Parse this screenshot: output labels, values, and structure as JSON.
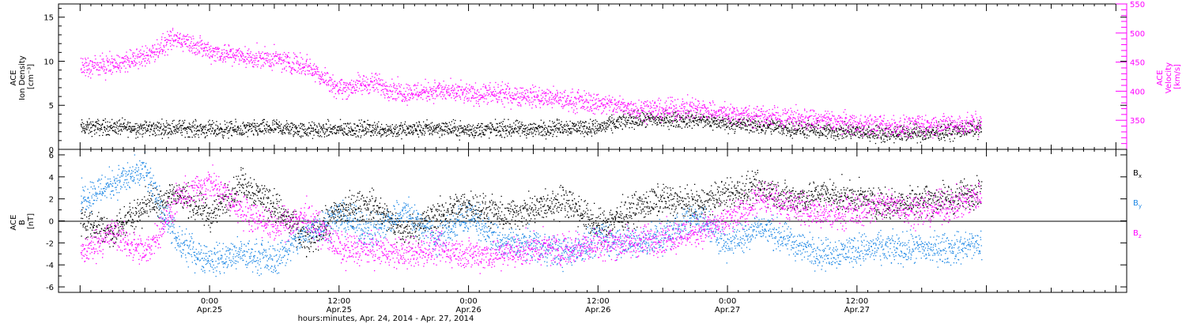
{
  "chart_data": [
    {
      "type": "scatter",
      "panel": "top",
      "ylabel": {
        "lines": [
          "ACE",
          "Ion Density",
          "[cm⁻³]"
        ]
      },
      "ylabel_right": {
        "lines": [
          "ACE",
          "Velocity",
          "[km/s]"
        ]
      },
      "ylim": [
        0,
        16.5
      ],
      "yticks": [
        0,
        5,
        10,
        15
      ],
      "ylim_right": [
        300,
        550
      ],
      "yticks_right": [
        350,
        400,
        450,
        500,
        550
      ],
      "series": [
        {
          "axis": "left",
          "color": "#000000",
          "x": [
            0,
            3,
            6,
            9,
            12,
            15,
            18,
            21,
            24,
            27,
            30,
            33,
            36,
            39,
            42,
            45,
            48,
            51,
            54,
            57,
            60,
            63,
            66,
            69,
            72,
            75,
            78,
            81,
            83.5
          ],
          "values": [
            2.5,
            2.6,
            2.4,
            2.5,
            2.3,
            2.3,
            2.5,
            2.2,
            2.3,
            2.4,
            2.2,
            2.5,
            2.2,
            2.4,
            2.3,
            2.6,
            2.5,
            3.4,
            3.4,
            3.4,
            3.0,
            2.7,
            2.4,
            2.1,
            2.0,
            1.8,
            1.9,
            2.1,
            2.5
          ]
        },
        {
          "axis": "right",
          "color": "#ff00ff",
          "x": [
            0,
            3,
            6,
            9,
            12,
            15,
            18,
            21,
            24,
            27,
            30,
            33,
            36,
            39,
            42,
            45,
            48,
            51,
            54,
            57,
            60,
            63,
            66,
            69,
            72,
            75,
            78,
            81,
            83.5
          ],
          "values": [
            442,
            446,
            460,
            492,
            470,
            460,
            455,
            445,
            405,
            415,
            398,
            402,
            395,
            395,
            392,
            385,
            380,
            372,
            368,
            372,
            362,
            358,
            354,
            350,
            345,
            340,
            342,
            343,
            344
          ]
        }
      ]
    },
    {
      "type": "scatter",
      "panel": "bottom",
      "ylabel": {
        "lines": [
          "ACE",
          "B",
          "[nT]"
        ]
      },
      "ylim": [
        -6.5,
        6.5
      ],
      "yticks": [
        -6,
        -4,
        -2,
        0,
        2,
        4,
        6
      ],
      "series": [
        {
          "name": "Bx",
          "color": "#000000",
          "x": [
            0,
            3,
            6,
            9,
            12,
            15,
            18,
            21,
            24,
            27,
            30,
            33,
            36,
            39,
            42,
            45,
            48,
            51,
            54,
            57,
            60,
            63,
            66,
            69,
            72,
            75,
            78,
            81,
            83.5
          ],
          "values": [
            0,
            -1.0,
            1.5,
            2.5,
            0.5,
            3.5,
            1.5,
            -2.0,
            1.0,
            1.5,
            -1.0,
            0.5,
            1.5,
            0.5,
            1.0,
            2.0,
            -0.5,
            1.0,
            2.0,
            1.5,
            2.5,
            3.0,
            2.0,
            2.5,
            2.0,
            1.5,
            2.0,
            2.0,
            3.0
          ]
        },
        {
          "name": "By",
          "color": "#1e88e5",
          "x": [
            0,
            3,
            6,
            9,
            12,
            15,
            18,
            21,
            24,
            27,
            30,
            33,
            36,
            39,
            42,
            45,
            48,
            51,
            54,
            57,
            60,
            63,
            66,
            69,
            72,
            75,
            78,
            81,
            83.5
          ],
          "values": [
            2.0,
            3.5,
            4.5,
            -2.0,
            -3.5,
            -3.0,
            -3.5,
            -1.0,
            0.5,
            -1.0,
            1.0,
            -1.5,
            0.5,
            -2.0,
            -2.0,
            -3.0,
            -1.5,
            -2.0,
            -1.5,
            0.5,
            -2.0,
            -0.5,
            -2.0,
            -3.0,
            -2.5,
            -2.5,
            -2.5,
            -2.5,
            -2.0
          ]
        },
        {
          "name": "Bz",
          "color": "#ff00ff",
          "x": [
            0,
            3,
            6,
            9,
            12,
            15,
            18,
            21,
            24,
            27,
            30,
            33,
            36,
            39,
            42,
            45,
            48,
            51,
            54,
            57,
            60,
            63,
            66,
            69,
            72,
            75,
            78,
            81,
            83.5
          ],
          "values": [
            -3.0,
            -1.0,
            -3.0,
            2.0,
            3.5,
            1.0,
            -0.5,
            0.5,
            -2.5,
            -2.5,
            -3.0,
            -2.5,
            -3.0,
            -3.0,
            -2.5,
            -2.5,
            -2.0,
            -2.0,
            -1.5,
            -1.0,
            0.0,
            2.0,
            1.5,
            0.5,
            1.0,
            1.5,
            1.0,
            1.5,
            2.5
          ]
        }
      ],
      "legend": [
        "Bx",
        "By",
        "Bz"
      ],
      "legend_placement": "right"
    }
  ],
  "x_axis": {
    "xlim": [
      -2,
      97
    ],
    "ticks": [
      {
        "x": 12,
        "time": "0:00",
        "date": "Apr.25"
      },
      {
        "x": 24,
        "time": "12:00",
        "date": "Apr.25"
      },
      {
        "x": 36,
        "time": "0:00",
        "date": "Apr.26"
      },
      {
        "x": 48,
        "time": "12:00",
        "date": "Apr.26"
      },
      {
        "x": 60,
        "time": "0:00",
        "date": "Apr.27"
      },
      {
        "x": 72,
        "time": "12:00",
        "date": "Apr.27"
      }
    ],
    "label": "hours:minutes, Apr. 24, 2014 - Apr. 27, 2014"
  },
  "colors": {
    "magenta": "#ff00ff",
    "blue": "#1e88e5",
    "black": "#000000"
  }
}
